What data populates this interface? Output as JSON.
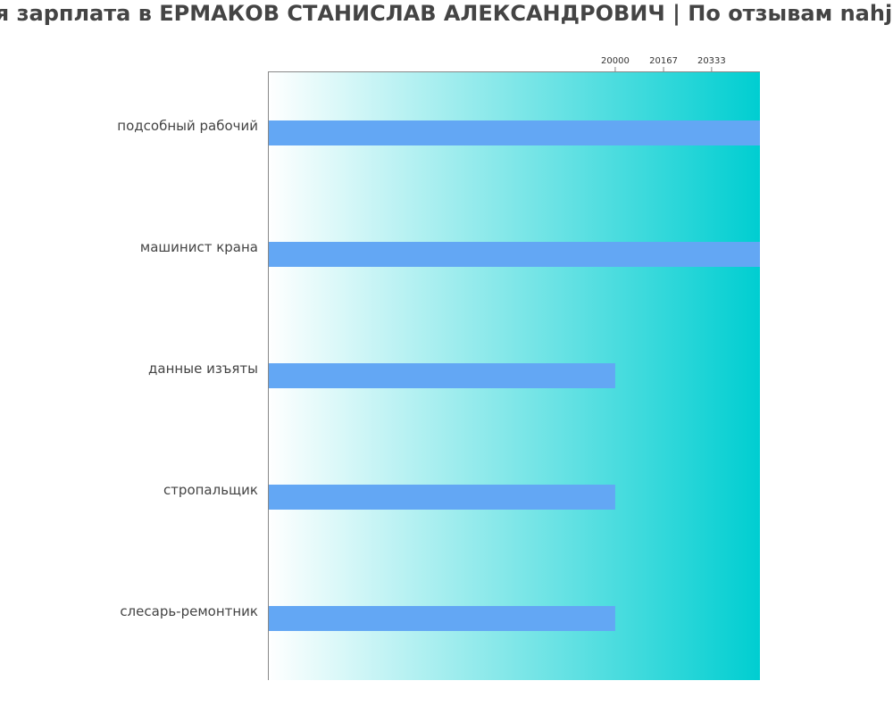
{
  "title": "я зарплата в ЕРМАКОВ СТАНИСЛАВ АЛЕКСАНДРОВИЧ | По отзывам nahj",
  "colors": {
    "bar": "#63a7f4",
    "gradient_start": "#ffffff",
    "gradient_end": "#00ced1",
    "axis": "#888888",
    "text": "#444444"
  },
  "chart_data": {
    "type": "bar",
    "orientation": "horizontal",
    "title": "я зарплата в ЕРМАКОВ СТАНИСЛАВ АЛЕКСАНДРОВИЧ | По отзывам nahj",
    "categories": [
      "подсобный рабочий",
      "машинист крана",
      "данные изъяты",
      "стропальщик",
      "слесарь-ремонтник"
    ],
    "values": [
      20500,
      20500,
      20000,
      20000,
      20000
    ],
    "xticks": [
      20000,
      20167,
      20333
    ],
    "xlim": [
      18800,
      20500
    ],
    "xaxis_position": "top",
    "grid": false,
    "xlabel": "",
    "ylabel": ""
  }
}
